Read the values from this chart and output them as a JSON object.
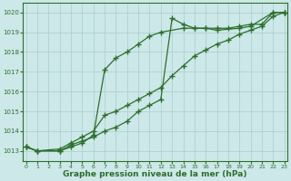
{
  "line1_x": [
    0,
    1,
    3,
    4,
    5,
    6,
    7,
    8,
    9,
    10,
    11,
    12,
    13,
    14,
    15,
    16,
    17,
    19,
    20,
    22,
    23
  ],
  "line1_y": [
    1013.2,
    1013.0,
    1013.0,
    1013.3,
    1013.5,
    1013.7,
    1014.0,
    1014.2,
    1014.5,
    1015.0,
    1015.3,
    1015.6,
    1019.7,
    1019.4,
    1019.2,
    1019.2,
    1019.1,
    1019.2,
    1019.3,
    1020.0,
    1020.0
  ],
  "line2_x": [
    0,
    1,
    3,
    4,
    5,
    6,
    7,
    8,
    9,
    10,
    11,
    12,
    14,
    15,
    16,
    17,
    18,
    19,
    20,
    21,
    22,
    23
  ],
  "line2_y": [
    1013.2,
    1013.0,
    1013.0,
    1013.2,
    1013.4,
    1013.8,
    1017.1,
    1017.7,
    1018.0,
    1018.4,
    1018.8,
    1019.0,
    1019.2,
    1019.2,
    1019.2,
    1019.2,
    1019.2,
    1019.3,
    1019.4,
    1019.4,
    1020.0,
    1020.0
  ],
  "line3_x": [
    0,
    1,
    3,
    4,
    5,
    6,
    7,
    8,
    9,
    10,
    11,
    12,
    13,
    14,
    15,
    16,
    17,
    18,
    19,
    20,
    21,
    22,
    23
  ],
  "line3_y": [
    1013.2,
    1013.0,
    1013.1,
    1013.4,
    1013.7,
    1014.0,
    1014.8,
    1015.0,
    1015.3,
    1015.6,
    1015.9,
    1016.2,
    1016.8,
    1017.3,
    1017.8,
    1018.1,
    1018.4,
    1018.6,
    1018.9,
    1019.1,
    1019.3,
    1019.8,
    1020.0
  ],
  "ylim": [
    1012.5,
    1020.5
  ],
  "yticks": [
    1013,
    1014,
    1015,
    1016,
    1017,
    1018,
    1019,
    1020
  ],
  "xlim": [
    -0.3,
    23.3
  ],
  "xticks": [
    0,
    1,
    2,
    3,
    4,
    5,
    6,
    7,
    8,
    9,
    10,
    11,
    12,
    13,
    14,
    15,
    16,
    17,
    18,
    19,
    20,
    21,
    22,
    23
  ],
  "xlabel": "Graphe pression niveau de la mer (hPa)",
  "line_color": "#2d6e2d",
  "bg_color": "#cce8e8",
  "grid_color": "#aacccc",
  "marker": "+",
  "marker_size": 4,
  "line_width": 0.9
}
